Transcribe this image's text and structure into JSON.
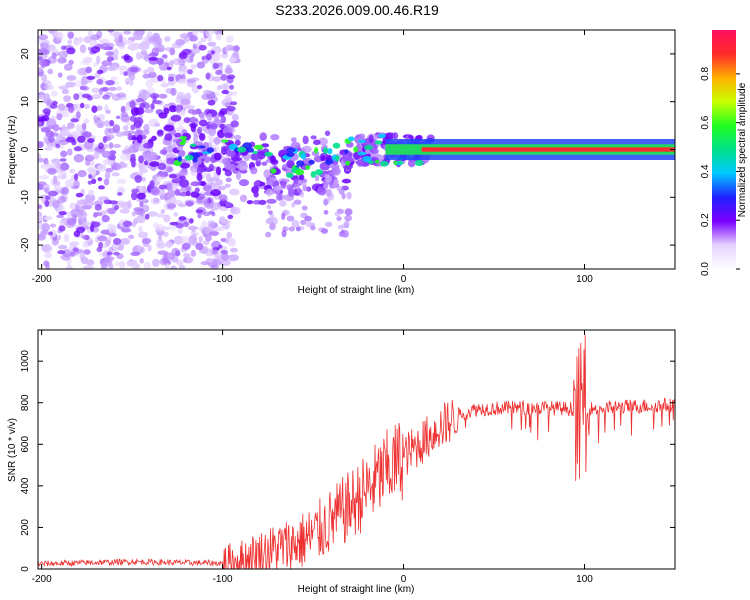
{
  "title": "S233.2026.009.00.46.R19",
  "colors": {
    "snr_line": "#ee3030",
    "core_line": "#ff2a2a",
    "core_glow": "#22d860",
    "core_halo": "#2244ff",
    "frame": "#000000"
  },
  "colorbar": {
    "label": "Normalized spectral amplitude",
    "ticks": [
      "0.0",
      "0.2",
      "0.4",
      "0.6",
      "0.8"
    ],
    "tick_values": [
      0.0,
      0.2,
      0.4,
      0.6,
      0.8
    ],
    "range": [
      0,
      0.98
    ]
  },
  "chart_data": [
    {
      "type": "heatmap",
      "title": "S233.2026.009.00.46.R19",
      "xlabel": "Height of straight line (km)",
      "ylabel": "Frequency (Hz)",
      "xlim": [
        -202,
        150
      ],
      "ylim": [
        -25,
        25
      ],
      "x_ticks": [
        -200,
        -100,
        0,
        100
      ],
      "x_tick_labels": [
        "-200",
        "-100",
        "0",
        "100"
      ],
      "y_ticks": [
        -20,
        -10,
        0,
        10,
        20
      ],
      "y_tick_labels": [
        "-20",
        "-10",
        "0",
        "10",
        "20"
      ],
      "description_points": {
        "core_band_start_km": 15,
        "core_band_freq_hz": 0,
        "noise_region_km": [
          -202,
          -100
        ],
        "transition_region_km": [
          -100,
          15
        ]
      }
    },
    {
      "type": "line",
      "xlabel": "Height of straight line (km)",
      "ylabel": "SNR (10 * v/v)",
      "xlim": [
        -202,
        150
      ],
      "ylim": [
        0,
        1150
      ],
      "x_ticks": [
        -200,
        -100,
        0,
        100
      ],
      "x_tick_labels": [
        "-200",
        "-100",
        "0",
        "100"
      ],
      "y_ticks": [
        0,
        200,
        400,
        600,
        800,
        1000
      ],
      "y_tick_labels": [
        "0",
        "200",
        "400",
        "600",
        "800",
        "1000"
      ],
      "series": [
        {
          "name": "SNR",
          "x": [
            -202,
            -150,
            -120,
            -100,
            -90,
            -80,
            -70,
            -60,
            -50,
            -40,
            -30,
            -20,
            -10,
            0,
            10,
            20,
            30,
            40,
            60,
            80,
            95,
            100,
            105,
            120,
            150
          ],
          "values": [
            25,
            35,
            30,
            28,
            40,
            70,
            100,
            120,
            160,
            230,
            300,
            380,
            470,
            540,
            610,
            680,
            740,
            770,
            775,
            775,
            770,
            780,
            770,
            780,
            790
          ]
        }
      ]
    }
  ]
}
